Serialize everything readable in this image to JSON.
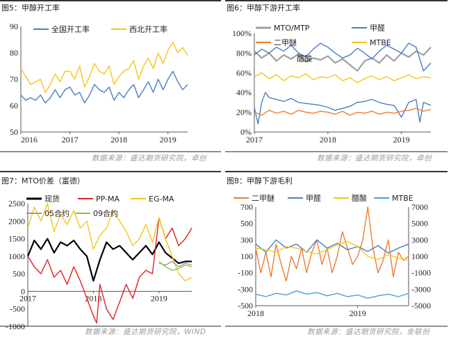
{
  "source_top_left": "数据来源：盛达期货研究院，卓创",
  "source_top_right": "数据来源：盛达期货研究院，卓创",
  "source_bottom_left": "数据来源：盛达期货研究院，WIND",
  "source_bottom_right": "数据来源：盛达期货研究院，金联创",
  "chart_data": [
    {
      "id": "fig5",
      "type": "line",
      "title": "图5：甲醇开工率",
      "xlim": [
        2016,
        2019.4
      ],
      "ylim": [
        50,
        90
      ],
      "yticks": [
        50,
        60,
        70,
        80,
        90
      ],
      "xticks": [
        {
          "value": 2016,
          "label": "2016"
        },
        {
          "value": 2017,
          "label": "2017"
        },
        {
          "value": 2018,
          "label": "2018"
        },
        {
          "value": 2019,
          "label": "2019"
        }
      ],
      "series": [
        {
          "name": "全国开工率",
          "color": "#4a7fc1",
          "x": [
            2016,
            2016.1,
            2016.2,
            2016.3,
            2016.4,
            2016.5,
            2016.6,
            2016.7,
            2016.8,
            2016.9,
            2017,
            2017.1,
            2017.2,
            2017.3,
            2017.4,
            2017.5,
            2017.6,
            2017.7,
            2017.8,
            2017.9,
            2018,
            2018.1,
            2018.2,
            2018.3,
            2018.4,
            2018.5,
            2018.6,
            2018.7,
            2018.8,
            2018.9,
            2019,
            2019.1,
            2019.2,
            2019.3,
            2019.4
          ],
          "values": [
            64,
            62,
            63,
            62,
            64,
            61,
            63,
            66,
            63,
            66,
            67,
            64,
            65,
            61,
            64,
            68,
            66,
            65,
            67,
            62,
            65,
            63,
            66,
            68,
            63,
            66,
            69,
            65,
            70,
            66,
            70,
            73,
            69,
            66,
            68
          ]
        },
        {
          "name": "西北开工率",
          "color": "#f5c518",
          "x": [
            2016,
            2016.1,
            2016.2,
            2016.3,
            2016.4,
            2016.5,
            2016.6,
            2016.7,
            2016.8,
            2016.9,
            2017,
            2017.1,
            2017.2,
            2017.3,
            2017.4,
            2017.5,
            2017.6,
            2017.7,
            2017.8,
            2017.9,
            2018,
            2018.1,
            2018.2,
            2018.3,
            2018.4,
            2018.5,
            2018.6,
            2018.7,
            2018.8,
            2018.9,
            2019,
            2019.1,
            2019.2,
            2019.3,
            2019.4
          ],
          "values": [
            74,
            71,
            68,
            69,
            70,
            65,
            68,
            72,
            69,
            73,
            73,
            70,
            75,
            67,
            71,
            76,
            73,
            72,
            75,
            68,
            71,
            73,
            74,
            77,
            70,
            75,
            78,
            74,
            80,
            76,
            81,
            84,
            80,
            82,
            79
          ]
        }
      ]
    },
    {
      "id": "fig6",
      "type": "line",
      "title": "图6：甲醇下游开工率",
      "xlim": [
        2017,
        2019.4
      ],
      "ylim": [
        0,
        100
      ],
      "yticks": [
        0,
        20,
        40,
        60,
        80,
        100
      ],
      "ytick_suffix": "%",
      "xticks": [
        {
          "value": 2017,
          "label": "2017"
        },
        {
          "value": 2018,
          "label": "2018"
        },
        {
          "value": 2019,
          "label": "2019"
        }
      ],
      "series": [
        {
          "name": "MTO/MTP",
          "color": "#a0a0a0",
          "x": [
            2017,
            2017.1,
            2017.2,
            2017.3,
            2017.4,
            2017.5,
            2017.6,
            2017.7,
            2017.8,
            2017.9,
            2018,
            2018.1,
            2018.2,
            2018.3,
            2018.4,
            2018.5,
            2018.6,
            2018.7,
            2018.8,
            2018.9,
            2019,
            2019.1,
            2019.2,
            2019.3,
            2019.4
          ],
          "values": [
            82,
            75,
            80,
            72,
            78,
            74,
            79,
            71,
            75,
            73,
            77,
            70,
            74,
            68,
            62,
            72,
            75,
            70,
            78,
            72,
            80,
            76,
            82,
            78,
            86
          ]
        },
        {
          "name": "甲醛",
          "color": "#4a7fc1",
          "x": [
            2017,
            2017.05,
            2017.1,
            2017.15,
            2017.2,
            2017.3,
            2017.4,
            2017.5,
            2017.6,
            2017.7,
            2017.8,
            2017.9,
            2018,
            2018.1,
            2018.2,
            2018.3,
            2018.4,
            2018.5,
            2018.6,
            2018.7,
            2018.8,
            2018.9,
            2019,
            2019.1,
            2019.2,
            2019.25,
            2019.3,
            2019.4
          ],
          "values": [
            25,
            8,
            30,
            40,
            35,
            33,
            31,
            34,
            30,
            29,
            28,
            27,
            25,
            22,
            24,
            26,
            30,
            31,
            33,
            30,
            28,
            27,
            15,
            30,
            33,
            10,
            30,
            27
          ]
        },
        {
          "name": "醋酸",
          "color": "#4a7fc1",
          "x": [
            2017,
            2017.1,
            2017.2,
            2017.3,
            2017.4,
            2017.5,
            2017.6,
            2017.7,
            2017.8,
            2017.9,
            2018,
            2018.1,
            2018.2,
            2018.3,
            2018.4,
            2018.5,
            2018.6,
            2018.7,
            2018.8,
            2018.9,
            2019,
            2019.1,
            2019.2,
            2019.3,
            2019.4
          ],
          "values": [
            78,
            84,
            80,
            86,
            82,
            88,
            80,
            76,
            84,
            90,
            86,
            80,
            75,
            78,
            85,
            80,
            74,
            82,
            88,
            84,
            80,
            90,
            86,
            62,
            70
          ]
        },
        {
          "name": "二甲醚",
          "color": "#ed7d31",
          "x": [
            2017,
            2017.1,
            2017.2,
            2017.3,
            2017.4,
            2017.5,
            2017.6,
            2017.7,
            2017.8,
            2017.9,
            2018,
            2018.1,
            2018.2,
            2018.3,
            2018.4,
            2018.5,
            2018.6,
            2018.7,
            2018.8,
            2018.9,
            2019,
            2019.1,
            2019.2,
            2019.3,
            2019.4
          ],
          "values": [
            20,
            17,
            22,
            19,
            21,
            18,
            22,
            20,
            19,
            21,
            20,
            18,
            21,
            17,
            20,
            19,
            21,
            18,
            20,
            19,
            21,
            22,
            24,
            21,
            23
          ]
        },
        {
          "name": "MTBE",
          "color": "#f5c518",
          "x": [
            2017,
            2017.1,
            2017.2,
            2017.3,
            2017.4,
            2017.5,
            2017.6,
            2017.7,
            2017.8,
            2017.9,
            2018,
            2018.1,
            2018.2,
            2018.3,
            2018.4,
            2018.5,
            2018.6,
            2018.7,
            2018.8,
            2018.9,
            2019,
            2019.1,
            2019.2,
            2019.3,
            2019.4
          ],
          "values": [
            56,
            60,
            54,
            58,
            52,
            57,
            55,
            59,
            53,
            56,
            55,
            58,
            52,
            55,
            50,
            54,
            57,
            53,
            56,
            52,
            55,
            58,
            54,
            56,
            55
          ]
        }
      ]
    },
    {
      "id": "fig7",
      "type": "line",
      "title": "图7：MTO价差（富德）",
      "xlim": [
        2017,
        2019.5
      ],
      "ylim": [
        -1000,
        2500
      ],
      "yticks": [
        -1000,
        -500,
        0,
        500,
        1000,
        1500,
        2000,
        2500
      ],
      "xticks": [
        {
          "value": 2017,
          "label": "2017"
        },
        {
          "value": 2018,
          "label": "2018"
        },
        {
          "value": 2019,
          "label": "2019"
        }
      ],
      "series": [
        {
          "name": "现货",
          "color": "#000000",
          "x": [
            2017,
            2017.1,
            2017.2,
            2017.3,
            2017.4,
            2017.5,
            2017.6,
            2017.7,
            2017.8,
            2017.9,
            2018,
            2018.1,
            2018.2,
            2018.3,
            2018.4,
            2018.5,
            2018.6,
            2018.7,
            2018.8,
            2018.9,
            2019,
            2019.1,
            2019.2,
            2019.3,
            2019.4,
            2019.5
          ],
          "values": [
            1000,
            1450,
            1200,
            1500,
            1100,
            1400,
            1300,
            1450,
            1200,
            1000,
            300,
            900,
            1400,
            1200,
            1300,
            1100,
            900,
            1100,
            1300,
            1050,
            1400,
            1100,
            950,
            800,
            850,
            850
          ]
        },
        {
          "name": "PP-MA",
          "color": "#e02020",
          "x": [
            2017,
            2017.1,
            2017.2,
            2017.3,
            2017.4,
            2017.5,
            2017.6,
            2017.7,
            2017.8,
            2017.9,
            2018,
            2018.05,
            2018.1,
            2018.2,
            2018.3,
            2018.4,
            2018.5,
            2018.6,
            2018.7,
            2018.8,
            2018.9,
            2019,
            2019.1,
            2019.2,
            2019.3,
            2019.4,
            2019.5
          ],
          "values": [
            1000,
            700,
            500,
            900,
            400,
            600,
            200,
            700,
            300,
            -200,
            -700,
            -900,
            200,
            -500,
            -800,
            -300,
            200,
            -200,
            400,
            600,
            500,
            2100,
            1500,
            1800,
            1300,
            1500,
            1800
          ]
        },
        {
          "name": "EG-MA",
          "color": "#f5c518",
          "x": [
            2017,
            2017.1,
            2017.2,
            2017.3,
            2017.4,
            2017.5,
            2017.6,
            2017.7,
            2017.8,
            2017.9,
            2018,
            2018.1,
            2018.2,
            2018.3,
            2018.4,
            2018.5,
            2018.6,
            2018.7,
            2018.8,
            2018.9,
            2019,
            2019.1,
            2019.2,
            2019.3,
            2019.4,
            2019.5
          ],
          "values": [
            1800,
            2400,
            2000,
            2500,
            1700,
            2200,
            1900,
            2300,
            1800,
            2000,
            1200,
            1600,
            1800,
            2300,
            2000,
            1700,
            1300,
            1500,
            1900,
            1400,
            2100,
            1500,
            1000,
            500,
            300,
            400
          ]
        },
        {
          "name": "05合约",
          "color": "#9a9a9a",
          "x": [
            2019,
            2019.1,
            2019.2,
            2019.3,
            2019.4,
            2019.5
          ],
          "values": [
            800,
            750,
            850,
            700,
            800,
            750
          ]
        },
        {
          "name": "09合约",
          "color": "#92c050",
          "x": [
            2019,
            2019.1,
            2019.2,
            2019.3,
            2019.4,
            2019.5
          ],
          "values": [
            850,
            700,
            600,
            650,
            750,
            700
          ]
        }
      ]
    },
    {
      "id": "fig8",
      "type": "line",
      "title": "图8：甲醇下游毛利",
      "xlim": [
        2018,
        2019.5
      ],
      "ylim": [
        -500,
        700
      ],
      "yticks": [
        -500,
        -300,
        -100,
        100,
        300,
        500,
        700
      ],
      "y2lim": [
        -5000,
        7000
      ],
      "y2ticks": [
        -5000,
        -3000,
        -1000,
        1000,
        3000,
        5000,
        7000
      ],
      "xticks": [
        {
          "value": 2018,
          "label": "2018"
        },
        {
          "value": 2019,
          "label": "2019"
        }
      ],
      "series": [
        {
          "name": "二甲醚",
          "color": "#ed7d31",
          "axis": "left",
          "x": [
            2018,
            2018.05,
            2018.1,
            2018.15,
            2018.2,
            2018.25,
            2018.3,
            2018.35,
            2018.4,
            2018.45,
            2018.5,
            2018.55,
            2018.6,
            2018.65,
            2018.7,
            2018.75,
            2018.8,
            2018.85,
            2018.9,
            2018.95,
            2019,
            2019.05,
            2019.1,
            2019.15,
            2019.2,
            2019.25,
            2019.3,
            2019.35,
            2019.4,
            2019.45,
            2019.5
          ],
          "values": [
            200,
            -100,
            150,
            -150,
            250,
            0,
            -200,
            100,
            -50,
            200,
            -100,
            150,
            300,
            0,
            200,
            -100,
            100,
            400,
            200,
            0,
            100,
            300,
            700,
            200,
            -100,
            50,
            300,
            -150,
            150,
            50,
            100
          ]
        },
        {
          "name": "甲醛",
          "color": "#4a7fc1",
          "axis": "left",
          "x": [
            2018,
            2018.1,
            2018.2,
            2018.3,
            2018.4,
            2018.5,
            2018.6,
            2018.7,
            2018.8,
            2018.9,
            2019,
            2019.1,
            2019.2,
            2019.3,
            2019.4,
            2019.5
          ],
          "values": [
            250,
            150,
            300,
            200,
            250,
            150,
            300,
            200,
            260,
            180,
            220,
            160,
            230,
            140,
            200,
            250
          ]
        },
        {
          "name": "醋酸",
          "color": "#f5c518",
          "axis": "right",
          "x": [
            2018,
            2018.1,
            2018.2,
            2018.3,
            2018.4,
            2018.5,
            2018.6,
            2018.7,
            2018.8,
            2018.9,
            2019,
            2019.1,
            2019.2,
            2019.3,
            2019.4,
            2019.5
          ],
          "values": [
            2000,
            1800,
            1500,
            2200,
            2000,
            1600,
            1300,
            1800,
            2400,
            2800,
            2200,
            1000,
            600,
            1200,
            800,
            500
          ]
        },
        {
          "name": "MTBE",
          "color": "#4a9fd8",
          "axis": "right",
          "x": [
            2018,
            2018.1,
            2018.2,
            2018.3,
            2018.4,
            2018.5,
            2018.6,
            2018.7,
            2018.8,
            2018.9,
            2019,
            2019.1,
            2019.2,
            2019.3,
            2019.4,
            2019.5
          ],
          "values": [
            -3600,
            -3900,
            -3500,
            -3700,
            -3200,
            -3600,
            -3400,
            -3800,
            -3500,
            -3900,
            -3700,
            -4100,
            -3800,
            -3600,
            -3900,
            -3500
          ]
        }
      ]
    }
  ]
}
